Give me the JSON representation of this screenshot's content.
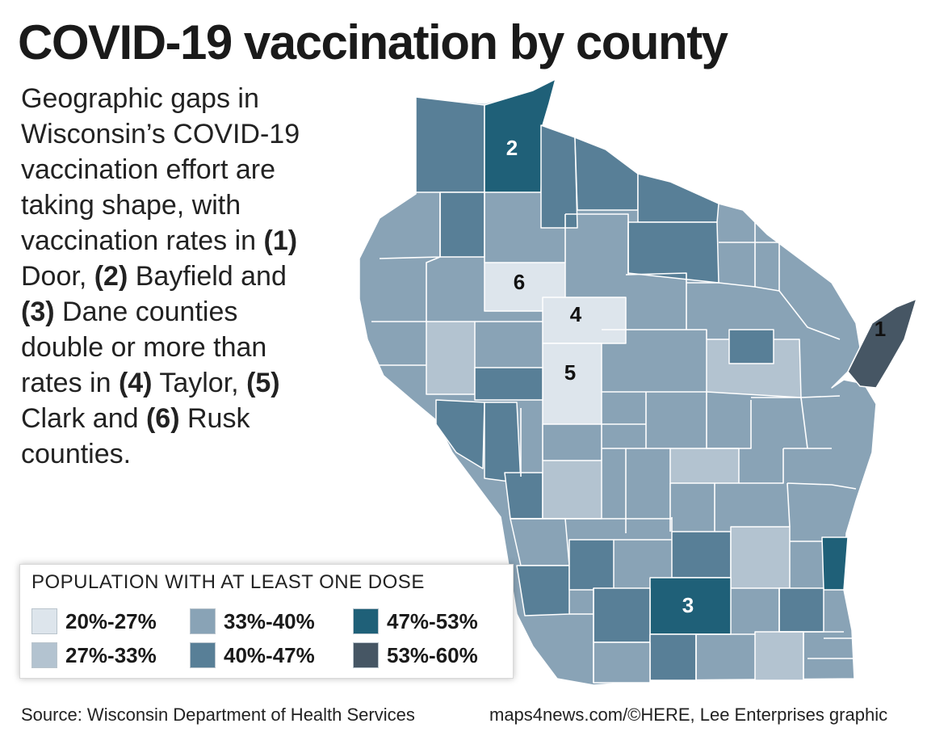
{
  "title": "COVID-19 vaccination by county",
  "intro": {
    "t1": "Geographic gaps in Wisconsin’s COVID-19 vaccination effort are taking shape, with vaccination rates in ",
    "n1": "(1)",
    "t2": " Door, ",
    "n2": "(2)",
    "t3": " Bayfield and ",
    "n3": "(3)",
    "t4": " Dane counties double or more than rates in ",
    "n4": "(4)",
    "t5": " Taylor, ",
    "n5": "(5)",
    "t6": " Clark and ",
    "n6": "(6)",
    "t7": " Rusk counties."
  },
  "legend": {
    "title": "POPULATION WITH AT LEAST ONE DOSE",
    "items": [
      {
        "label": "20%-27%",
        "color": "#dde5ec"
      },
      {
        "label": "27%-33%",
        "color": "#b3c3d0"
      },
      {
        "label": "33%-40%",
        "color": "#89a3b6"
      },
      {
        "label": "40%-47%",
        "color": "#587f97"
      },
      {
        "label": "47%-53%",
        "color": "#1f6078"
      },
      {
        "label": "53%-60%",
        "color": "#465664"
      }
    ]
  },
  "markers": [
    {
      "num": "1",
      "county": "Door"
    },
    {
      "num": "2",
      "county": "Bayfield"
    },
    {
      "num": "3",
      "county": "Dane"
    },
    {
      "num": "4",
      "county": "Taylor"
    },
    {
      "num": "5",
      "county": "Clark"
    },
    {
      "num": "6",
      "county": "Rusk"
    }
  ],
  "footer": {
    "source": "Source: Wisconsin Department of Health Services",
    "credit": "maps4news.com/©HERE, Lee Enterprises graphic"
  }
}
